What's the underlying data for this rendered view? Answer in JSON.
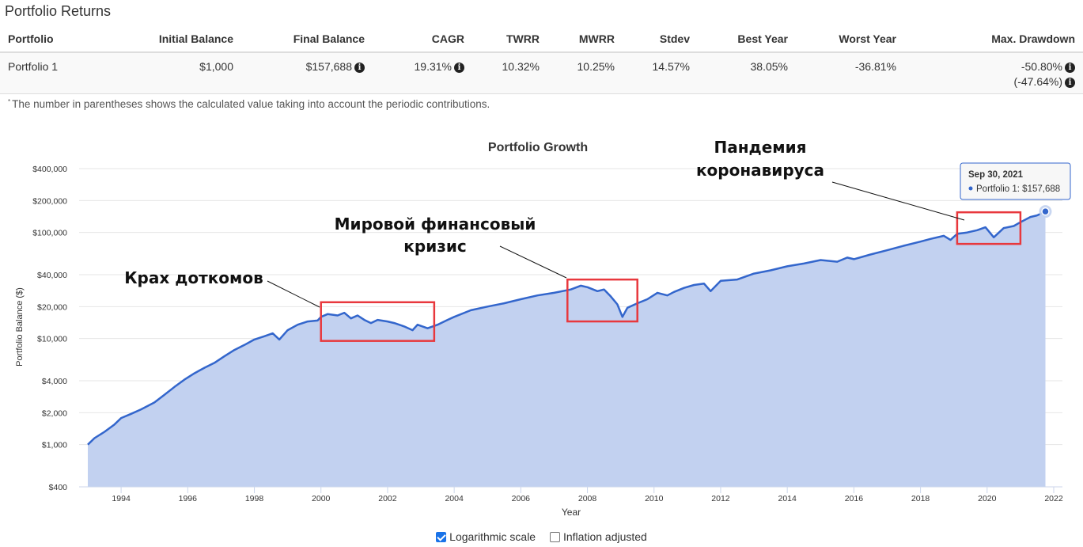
{
  "section_title": "Portfolio Returns",
  "table": {
    "headers": [
      "Portfolio",
      "Initial Balance",
      "Final Balance",
      "CAGR",
      "TWRR",
      "MWRR",
      "Stdev",
      "Best Year",
      "Worst Year",
      "Max. Drawdown"
    ],
    "row": {
      "portfolio": "Portfolio 1",
      "initial_balance": "$1,000",
      "final_balance": "$157,688",
      "cagr": "19.31%",
      "twrr": "10.32%",
      "mwrr": "10.25%",
      "stdev": "14.57%",
      "best_year": "38.05%",
      "worst_year": "-36.81%",
      "max_drawdown": "-50.80%",
      "max_drawdown_contrib": "(-47.64%)"
    },
    "info_icon": "info-circle-icon"
  },
  "footnote": {
    "marker": "*",
    "text": "The number in parentheses shows the calculated value taking into account the periodic contributions."
  },
  "chart_data": {
    "type": "area",
    "title": "Portfolio Growth",
    "xlabel": "Year",
    "ylabel": "Portfolio Balance ($)",
    "y_scale": "log",
    "xlim": [
      1993.0,
      2022.0
    ],
    "ylim": [
      400,
      400000
    ],
    "x_ticks": [
      "1994",
      "1996",
      "1998",
      "2000",
      "2002",
      "2004",
      "2006",
      "2008",
      "2010",
      "2012",
      "2014",
      "2016",
      "2018",
      "2020",
      "2022"
    ],
    "y_ticks": [
      {
        "value": 400,
        "label": "$400"
      },
      {
        "value": 1000,
        "label": "$1,000"
      },
      {
        "value": 2000,
        "label": "$2,000"
      },
      {
        "value": 4000,
        "label": "$4,000"
      },
      {
        "value": 10000,
        "label": "$10,000"
      },
      {
        "value": 20000,
        "label": "$20,000"
      },
      {
        "value": 40000,
        "label": "$40,000"
      },
      {
        "value": 100000,
        "label": "$100,000"
      },
      {
        "value": 200000,
        "label": "$200,000"
      },
      {
        "value": 400000,
        "label": "$400,000"
      }
    ],
    "grid": true,
    "line_color": "#3366cc",
    "fill_color": "#c2d1f0",
    "series": [
      {
        "name": "Portfolio 1",
        "x": [
          1993.0,
          1993.2,
          1993.5,
          1993.8,
          1994.0,
          1994.3,
          1994.6,
          1995.0,
          1995.3,
          1995.6,
          1995.9,
          1996.2,
          1996.5,
          1996.8,
          1997.1,
          1997.4,
          1997.7,
          1998.0,
          1998.3,
          1998.55,
          1998.75,
          1999.0,
          1999.3,
          1999.6,
          1999.9,
          2000.0,
          2000.2,
          2000.5,
          2000.7,
          2000.9,
          2001.1,
          2001.3,
          2001.5,
          2001.7,
          2002.0,
          2002.2,
          2002.5,
          2002.75,
          2002.9,
          2003.2,
          2003.5,
          2003.8,
          2004.0,
          2004.5,
          2005.0,
          2005.5,
          2006.0,
          2006.5,
          2007.0,
          2007.5,
          2007.8,
          2008.0,
          2008.3,
          2008.5,
          2008.7,
          2008.9,
          2009.05,
          2009.2,
          2009.5,
          2009.8,
          2010.1,
          2010.4,
          2010.6,
          2010.9,
          2011.2,
          2011.5,
          2011.7,
          2012.0,
          2012.5,
          2013.0,
          2013.5,
          2014.0,
          2014.5,
          2015.0,
          2015.5,
          2015.8,
          2016.0,
          2016.5,
          2017.0,
          2017.5,
          2018.0,
          2018.3,
          2018.7,
          2018.9,
          2019.1,
          2019.4,
          2019.7,
          2019.95,
          2020.2,
          2020.5,
          2020.8,
          2021.0,
          2021.3,
          2021.5,
          2021.75
        ],
        "values": [
          1000,
          1150,
          1320,
          1550,
          1780,
          1950,
          2150,
          2500,
          2950,
          3500,
          4100,
          4700,
          5300,
          5900,
          6800,
          7800,
          8700,
          9800,
          10500,
          11200,
          9800,
          12000,
          13500,
          14500,
          14800,
          16000,
          17000,
          16500,
          17500,
          15500,
          16500,
          15000,
          14000,
          15000,
          14500,
          14000,
          13000,
          12000,
          13500,
          12500,
          13500,
          15000,
          16000,
          18500,
          20000,
          21500,
          23500,
          25500,
          27000,
          29000,
          31500,
          30500,
          28000,
          29000,
          25000,
          21000,
          16000,
          19500,
          21500,
          23500,
          27000,
          25500,
          27500,
          30000,
          32000,
          33000,
          28000,
          35000,
          36000,
          41000,
          44000,
          48000,
          51000,
          55000,
          53000,
          58000,
          56000,
          62000,
          68000,
          75000,
          82000,
          87000,
          93000,
          85000,
          97000,
          100000,
          105000,
          112000,
          90000,
          110000,
          115000,
          125000,
          140000,
          145000,
          157688
        ]
      }
    ],
    "annotations": [
      {
        "text_lines": [
          "Крах доткомов"
        ],
        "box": {
          "x_from": 2000.0,
          "x_to": 2003.4,
          "y_from": 9500,
          "y_to": 22000
        }
      },
      {
        "text_lines": [
          "Мировой финансовый",
          "кризис"
        ],
        "box": {
          "x_from": 2007.4,
          "x_to": 2009.5,
          "y_from": 14500,
          "y_to": 36000
        }
      },
      {
        "text_lines": [
          "Пандемия",
          "коронавируса"
        ],
        "box": {
          "x_from": 2019.1,
          "x_to": 2021.0,
          "y_from": 78000,
          "y_to": 155000
        }
      }
    ],
    "tooltip": {
      "date": "Sep 30, 2021",
      "series_name": "Portfolio 1",
      "value": "$157,688",
      "x": 2021.75,
      "y": 157688
    }
  },
  "controls": {
    "log_scale_label": "Logarithmic scale",
    "log_scale_checked": true,
    "inflation_label": "Inflation adjusted",
    "inflation_checked": false
  }
}
